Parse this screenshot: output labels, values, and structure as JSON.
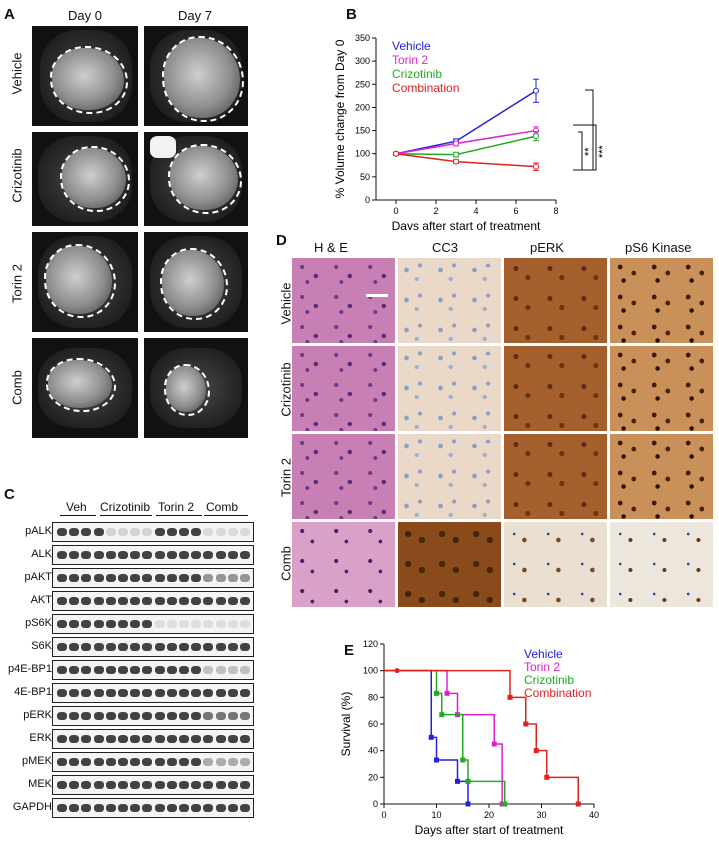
{
  "panels": {
    "A": {
      "letter": "A",
      "columns": [
        "Day 0",
        "Day 7"
      ],
      "rows": [
        "Vehicle",
        "Crizotinib",
        "Torin 2",
        "Comb"
      ]
    },
    "B": {
      "letter": "B",
      "legend": [
        "Vehicle",
        "Torin 2",
        "Crizotinib",
        "Combination"
      ],
      "sig": [
        "**",
        "***",
        "**"
      ]
    },
    "C": {
      "letter": "C",
      "groups": [
        "Veh",
        "Crizotinib",
        "Torin 2",
        "Comb"
      ],
      "rows": [
        "pALK",
        "ALK",
        "pAKT",
        "AKT",
        "pS6K",
        "S6K",
        "p4E-BP1",
        "4E-BP1",
        "pERK",
        "ERK",
        "pMEK",
        "MEK",
        "GAPDH"
      ]
    },
    "D": {
      "letter": "D",
      "columns": [
        "H & E",
        "CC3",
        "pERK",
        "pS6 Kinase"
      ],
      "rows": [
        "Vehicle",
        "Crizotinib",
        "Torin 2",
        "Comb"
      ]
    },
    "E": {
      "letter": "E",
      "legend": [
        "Vehicle",
        "Torin 2",
        "Crizotinib",
        "Combination"
      ]
    }
  },
  "colors": {
    "vehicle": "#2222dd",
    "torin2": "#e020d0",
    "crizotinib": "#22aa22",
    "combination": "#dd2222"
  },
  "chart_data": [
    {
      "panel": "B",
      "type": "line",
      "xlabel": "Days after start of treatment",
      "ylabel": "% Volume change from Day 0",
      "xlim": [
        -1,
        8
      ],
      "ylim": [
        0,
        350
      ],
      "xticks": [
        0,
        2,
        4,
        6,
        8
      ],
      "yticks": [
        0,
        50,
        100,
        150,
        200,
        250,
        300,
        350
      ],
      "x": [
        0,
        3,
        7
      ],
      "series": [
        {
          "name": "Vehicle",
          "values": [
            100,
            127,
            236
          ],
          "errors": [
            3,
            5,
            25
          ]
        },
        {
          "name": "Torin 2",
          "values": [
            100,
            122,
            150
          ],
          "errors": [
            3,
            5,
            8
          ]
        },
        {
          "name": "Crizotinib",
          "values": [
            100,
            98,
            138
          ],
          "errors": [
            3,
            5,
            10
          ]
        },
        {
          "name": "Combination",
          "values": [
            100,
            83,
            72
          ],
          "errors": [
            3,
            4,
            8
          ]
        }
      ]
    },
    {
      "panel": "E",
      "type": "line",
      "xlabel": "Days after start of treatment",
      "ylabel": "Survival (%)",
      "xlim": [
        0,
        40
      ],
      "ylim": [
        0,
        120
      ],
      "xticks": [
        0,
        10,
        20,
        30,
        40
      ],
      "yticks": [
        0,
        20,
        40,
        60,
        80,
        100,
        120
      ],
      "series": [
        {
          "name": "Vehicle",
          "steps": [
            [
              0,
              100
            ],
            [
              9,
              100
            ],
            [
              9,
              50
            ],
            [
              10,
              50
            ],
            [
              10,
              33
            ],
            [
              14,
              33
            ],
            [
              14,
              17
            ],
            [
              16,
              17
            ],
            [
              16,
              0
            ]
          ]
        },
        {
          "name": "Torin 2",
          "steps": [
            [
              0,
              100
            ],
            [
              12,
              100
            ],
            [
              12,
              83
            ],
            [
              14,
              83
            ],
            [
              14,
              67
            ],
            [
              21,
              67
            ],
            [
              21,
              45
            ],
            [
              22.5,
              45
            ],
            [
              22.5,
              0
            ],
            [
              23,
              0
            ]
          ]
        },
        {
          "name": "Crizotinib",
          "steps": [
            [
              0,
              100
            ],
            [
              10,
              100
            ],
            [
              10,
              83
            ],
            [
              11,
              83
            ],
            [
              11,
              67
            ],
            [
              15,
              67
            ],
            [
              15,
              33
            ],
            [
              16,
              33
            ],
            [
              16,
              17
            ],
            [
              23,
              17
            ],
            [
              23,
              0
            ],
            [
              24,
              0
            ]
          ]
        },
        {
          "name": "Combination",
          "steps": [
            [
              0,
              100
            ],
            [
              24,
              100
            ],
            [
              24,
              80
            ],
            [
              27,
              80
            ],
            [
              27,
              60
            ],
            [
              29,
              60
            ],
            [
              29,
              40
            ],
            [
              31,
              40
            ],
            [
              31,
              20
            ],
            [
              37,
              20
            ],
            [
              37,
              0
            ]
          ]
        }
      ]
    }
  ]
}
